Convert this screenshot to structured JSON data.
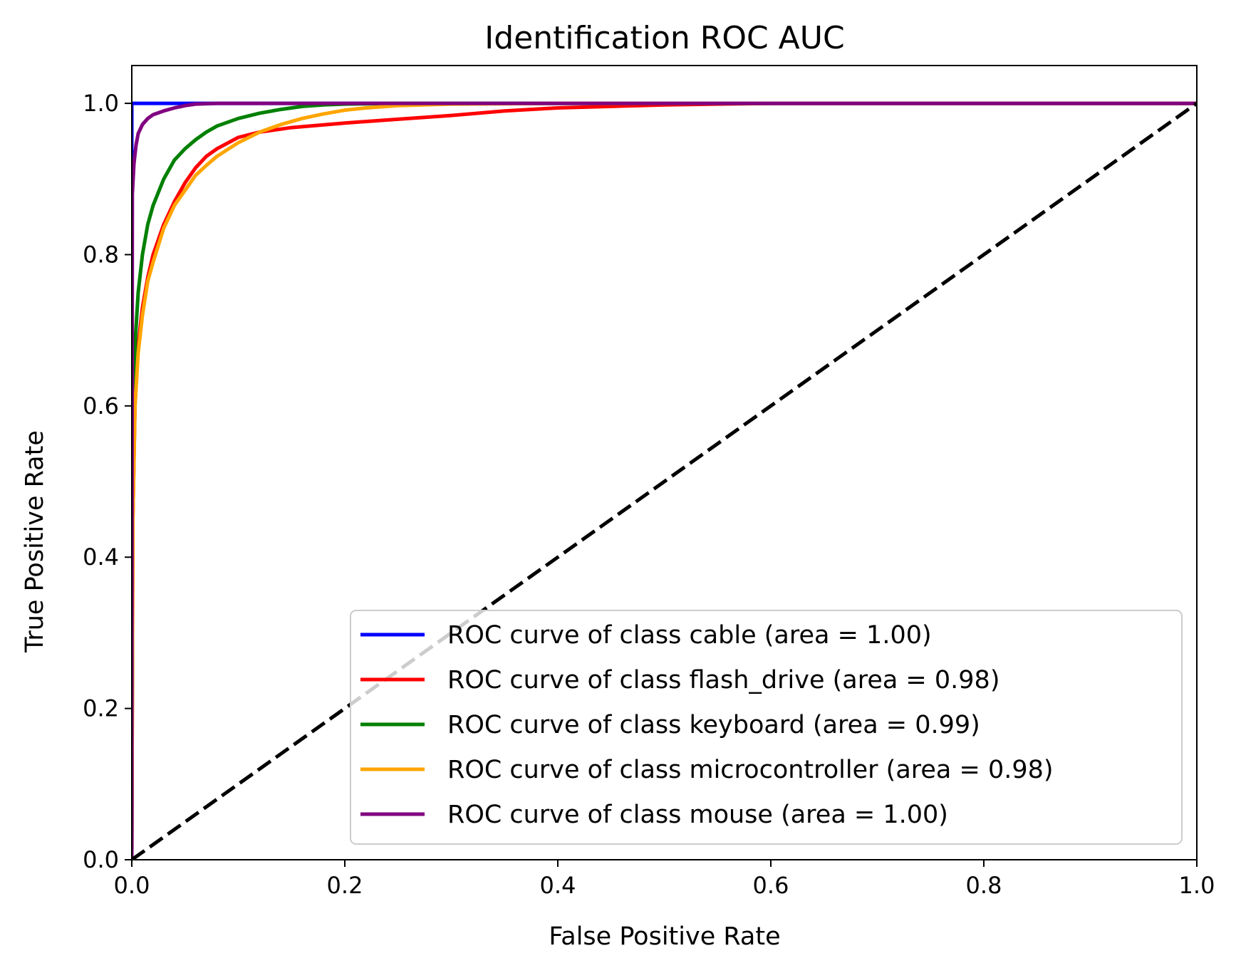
{
  "chart_data": {
    "type": "line",
    "title": "Identification ROC AUC",
    "xlabel": "False Positive Rate",
    "ylabel": "True Positive Rate",
    "xlim": [
      0.0,
      1.0
    ],
    "ylim": [
      0.0,
      1.05
    ],
    "xticks": [
      "0.0",
      "0.2",
      "0.4",
      "0.6",
      "0.8",
      "1.0"
    ],
    "yticks": [
      "0.0",
      "0.2",
      "0.4",
      "0.6",
      "0.8",
      "1.0"
    ],
    "grid": false,
    "legend_position": "lower-right",
    "series": [
      {
        "name": "ROC curve of class cable (area = 1.00)",
        "color": "#0000ff",
        "x": [
          0.0,
          0.0,
          1.0
        ],
        "y": [
          0.0,
          1.0,
          1.0
        ]
      },
      {
        "name": "ROC curve of class flash_drive (area = 0.98)",
        "color": "#ff0000",
        "x": [
          0.0,
          0.001,
          0.003,
          0.006,
          0.01,
          0.015,
          0.02,
          0.03,
          0.04,
          0.05,
          0.06,
          0.07,
          0.08,
          0.1,
          0.12,
          0.15,
          0.2,
          0.25,
          0.3,
          0.35,
          0.4,
          0.45,
          0.5,
          0.55,
          0.6,
          0.7,
          0.8,
          0.9,
          1.0
        ],
        "y": [
          0.0,
          0.45,
          0.6,
          0.68,
          0.73,
          0.77,
          0.8,
          0.84,
          0.87,
          0.895,
          0.915,
          0.93,
          0.94,
          0.955,
          0.962,
          0.968,
          0.974,
          0.979,
          0.984,
          0.99,
          0.994,
          0.996,
          0.998,
          0.999,
          1.0,
          1.0,
          1.0,
          1.0,
          1.0
        ]
      },
      {
        "name": "ROC curve of class keyboard (area = 0.99)",
        "color": "#008000",
        "x": [
          0.0,
          0.001,
          0.003,
          0.006,
          0.01,
          0.015,
          0.02,
          0.03,
          0.04,
          0.05,
          0.06,
          0.07,
          0.08,
          0.1,
          0.12,
          0.14,
          0.16,
          0.18,
          0.2,
          0.25,
          0.3,
          0.4,
          0.5,
          0.6,
          0.8,
          1.0
        ],
        "y": [
          0.0,
          0.55,
          0.68,
          0.75,
          0.8,
          0.84,
          0.865,
          0.9,
          0.925,
          0.94,
          0.952,
          0.962,
          0.97,
          0.98,
          0.987,
          0.992,
          0.996,
          0.998,
          0.999,
          1.0,
          1.0,
          1.0,
          1.0,
          1.0,
          1.0,
          1.0
        ]
      },
      {
        "name": "ROC curve of class microcontroller (area = 0.98)",
        "color": "#ffa500",
        "x": [
          0.0,
          0.001,
          0.003,
          0.006,
          0.01,
          0.015,
          0.02,
          0.03,
          0.04,
          0.05,
          0.06,
          0.07,
          0.08,
          0.1,
          0.12,
          0.14,
          0.16,
          0.18,
          0.2,
          0.22,
          0.25,
          0.3,
          0.4,
          0.5,
          0.6,
          0.8,
          1.0
        ],
        "y": [
          0.0,
          0.45,
          0.6,
          0.67,
          0.72,
          0.765,
          0.79,
          0.835,
          0.865,
          0.885,
          0.905,
          0.918,
          0.93,
          0.948,
          0.962,
          0.972,
          0.98,
          0.986,
          0.991,
          0.994,
          0.997,
          0.999,
          1.0,
          1.0,
          1.0,
          1.0,
          1.0
        ]
      },
      {
        "name": "ROC curve of class mouse (area = 1.00)",
        "color": "#800080",
        "x": [
          0.0,
          0.0005,
          0.002,
          0.004,
          0.006,
          0.01,
          0.015,
          0.02,
          0.03,
          0.04,
          0.05,
          0.06,
          0.08,
          0.1,
          0.2,
          0.4,
          0.6,
          0.8,
          1.0
        ],
        "y": [
          0.0,
          0.88,
          0.92,
          0.945,
          0.96,
          0.972,
          0.98,
          0.985,
          0.99,
          0.994,
          0.997,
          0.999,
          1.0,
          1.0,
          1.0,
          1.0,
          1.0,
          1.0,
          1.0
        ]
      }
    ],
    "reference_line": {
      "color": "#000000",
      "style": "dashed",
      "x": [
        0.0,
        1.0
      ],
      "y": [
        0.0,
        1.0
      ]
    }
  }
}
